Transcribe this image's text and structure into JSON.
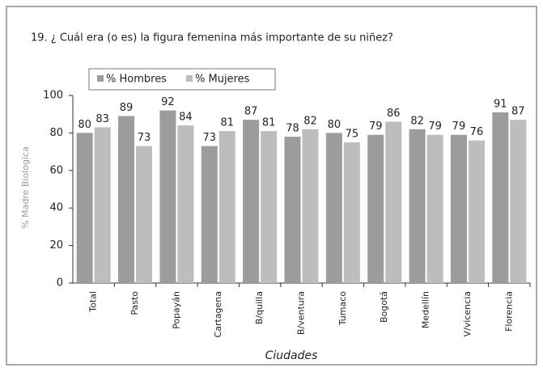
{
  "chart_data": {
    "type": "bar",
    "title": "19. ¿ Cuál era (o es) la figura femenina más importante de su niñez?",
    "y_label": "% Madre Biologica",
    "x_label": "Ciudades",
    "categories": [
      "Total",
      "Pasto",
      "Popayán",
      "Cartagena",
      "B/quilla",
      "B/ventura",
      "Tumaco",
      "Bogotá",
      "Medellín",
      "V/vicencia",
      "Florencia"
    ],
    "series": [
      {
        "name": "% Hombres",
        "color": "#9c9c9c",
        "values": [
          80,
          89,
          92,
          73,
          87,
          78,
          80,
          79,
          82,
          79,
          91
        ]
      },
      {
        "name": "% Mujeres",
        "color": "#bdbdbd",
        "values": [
          83,
          73,
          84,
          81,
          81,
          82,
          75,
          86,
          79,
          76,
          87
        ]
      }
    ],
    "ylim": [
      0,
      100
    ],
    "yticks": [
      0,
      20,
      40,
      60,
      80,
      100
    ],
    "grid": false,
    "legend": "top-left"
  }
}
